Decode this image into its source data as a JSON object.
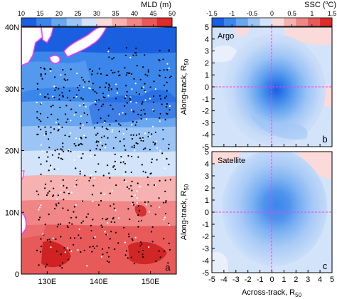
{
  "chart_data": [
    {
      "type": "heatmap",
      "id": "a",
      "panel_label": "a",
      "colorbar": {
        "title": "MLD (m)",
        "ticks": [
          "10",
          "15",
          "20",
          "25",
          "30",
          "35",
          "40",
          "45",
          "50"
        ],
        "range": [
          10,
          50
        ],
        "colors": [
          "#1a5fe0",
          "#3b86ea",
          "#68a6f0",
          "#9cc5f5",
          "#d2e3fa",
          "#fbdada",
          "#f6b1b1",
          "#f08686",
          "#e85a5a",
          "#e02b2b"
        ]
      },
      "x_ticks": [
        "130E",
        "140E",
        "150E"
      ],
      "x_tick_values": [
        130,
        140,
        150
      ],
      "y_ticks": [
        "0",
        "10N",
        "20N",
        "30N",
        "40N"
      ],
      "y_tick_values": [
        0,
        10,
        20,
        30,
        40
      ],
      "xlim": [
        125,
        155
      ],
      "ylim": [
        0,
        40
      ],
      "mld_by_latitude": [
        {
          "lat": 2,
          "mld": 45
        },
        {
          "lat": 6,
          "mld": 42
        },
        {
          "lat": 10,
          "mld": 38
        },
        {
          "lat": 14,
          "mld": 34
        },
        {
          "lat": 18,
          "mld": 29
        },
        {
          "lat": 22,
          "mld": 22
        },
        {
          "lat": 26,
          "mld": 18
        },
        {
          "lat": 30,
          "mld": 15
        },
        {
          "lat": 34,
          "mld": 15
        },
        {
          "lat": 38,
          "mld": 12
        }
      ],
      "markers": {
        "black": "Argo profiles",
        "white": "Argo profiles"
      }
    },
    {
      "type": "heatmap",
      "id": "b",
      "panel_label": "b",
      "inset_label": "Argo",
      "colorbar": {
        "title": "SSC (",
        "title_sup": "o",
        "title_end": "C)",
        "ticks": [
          "-1.5",
          "-1",
          "-0.5",
          "0",
          "0.5",
          "1",
          "1.5"
        ],
        "range": [
          -1.5,
          1.5
        ],
        "colors": [
          "#1a5fe0",
          "#3b86ea",
          "#68a6f0",
          "#9cc5f5",
          "#d2e3fa",
          "#fbdada",
          "#f6b1b1",
          "#f08686",
          "#e85a5a",
          "#e02b2b"
        ]
      },
      "ylabel": "Along-track, R",
      "ylabel_sub": "50",
      "y_ticks": [
        "-5",
        "-4",
        "-3",
        "-2",
        "-1",
        "0",
        "1",
        "2",
        "3",
        "4",
        "5"
      ],
      "xlim": [
        -5,
        5
      ],
      "ylim": [
        -5,
        5
      ],
      "min_ssc": -1.2,
      "min_location": [
        0.5,
        0.3
      ]
    },
    {
      "type": "heatmap",
      "id": "c",
      "panel_label": "c",
      "inset_label": "Satellite",
      "xlabel": "Across-track, R",
      "xlabel_sub": "50",
      "ylabel": "Along-track, R",
      "ylabel_sub": "50",
      "x_ticks": [
        "-5",
        "-4",
        "-3",
        "-2",
        "-1",
        "0",
        "1",
        "2",
        "3",
        "4",
        "5"
      ],
      "y_ticks": [
        "-5",
        "-4",
        "-3",
        "-2",
        "-1",
        "0",
        "1",
        "2",
        "3",
        "4",
        "5"
      ],
      "xlim": [
        -5,
        5
      ],
      "ylim": [
        -5,
        5
      ],
      "min_ssc": -1.0,
      "min_location": [
        0.5,
        0.5
      ]
    }
  ]
}
